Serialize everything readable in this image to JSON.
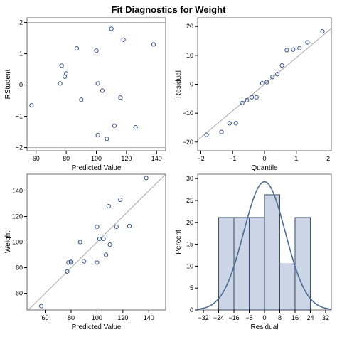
{
  "title": "Fit Diagnostics for Weight",
  "colors": {
    "marker": "#39558a",
    "curve": "#4d6b94",
    "bar_fill": "#cbd5e5",
    "bar_stroke": "#3a4a66",
    "frame": "#6f6f6f",
    "refline": "#a8a8a8"
  },
  "chart_data": [
    {
      "type": "scatter",
      "panel": "rstudent-vs-predicted",
      "xlabel": "Predicted Value",
      "ylabel": "RStudent",
      "xlim": [
        54,
        146
      ],
      "ylim": [
        -2.1,
        2.15
      ],
      "xticks": [
        60,
        80,
        100,
        120,
        140
      ],
      "yticks": [
        -2,
        -1,
        0,
        1,
        2
      ],
      "reference_lines_y": [
        -2,
        2
      ],
      "points": [
        {
          "x": 57,
          "y": -0.65
        },
        {
          "x": 76,
          "y": 0.05
        },
        {
          "x": 77,
          "y": 0.62
        },
        {
          "x": 79,
          "y": 0.27
        },
        {
          "x": 80,
          "y": 0.37
        },
        {
          "x": 87,
          "y": 1.17
        },
        {
          "x": 90,
          "y": -0.47
        },
        {
          "x": 100,
          "y": 1.1
        },
        {
          "x": 101,
          "y": -1.6
        },
        {
          "x": 101,
          "y": 0.05
        },
        {
          "x": 104,
          "y": -0.18
        },
        {
          "x": 107,
          "y": -1.72
        },
        {
          "x": 110,
          "y": 1.8
        },
        {
          "x": 112,
          "y": -1.3
        },
        {
          "x": 116,
          "y": -0.4
        },
        {
          "x": 118,
          "y": 1.45
        },
        {
          "x": 126,
          "y": -1.35
        },
        {
          "x": 138,
          "y": 1.3
        }
      ]
    },
    {
      "type": "scatter",
      "panel": "qq-plot",
      "xlabel": "Quantile",
      "ylabel": "Residual",
      "xlim": [
        -2.1,
        2.1
      ],
      "ylim": [
        -23,
        23
      ],
      "xticks": [
        -2,
        -1,
        0,
        1,
        2
      ],
      "yticks": [
        -20,
        -10,
        0,
        10,
        20
      ],
      "reference_line": {
        "slope": 9.2,
        "intercept": 0
      },
      "points": [
        {
          "x": -1.82,
          "y": -17.5
        },
        {
          "x": -1.35,
          "y": -16.5
        },
        {
          "x": -1.1,
          "y": -13.5
        },
        {
          "x": -0.9,
          "y": -13.5
        },
        {
          "x": -0.7,
          "y": -6.5
        },
        {
          "x": -0.55,
          "y": -5.5
        },
        {
          "x": -0.4,
          "y": -4.5
        },
        {
          "x": -0.25,
          "y": -4.5
        },
        {
          "x": -0.07,
          "y": 0.3
        },
        {
          "x": 0.07,
          "y": 0.7
        },
        {
          "x": 0.25,
          "y": 2.5
        },
        {
          "x": 0.4,
          "y": 3.5
        },
        {
          "x": 0.55,
          "y": 6.5
        },
        {
          "x": 0.7,
          "y": 11.8
        },
        {
          "x": 0.9,
          "y": 12.0
        },
        {
          "x": 1.1,
          "y": 12.5
        },
        {
          "x": 1.35,
          "y": 14.5
        },
        {
          "x": 1.82,
          "y": 18.3
        }
      ]
    },
    {
      "type": "scatter",
      "panel": "observed-vs-predicted",
      "xlabel": "Predicted Value",
      "ylabel": "Weight",
      "xlim": [
        46,
        153
      ],
      "ylim": [
        47,
        153
      ],
      "xticks": [
        60,
        80,
        100,
        120,
        140
      ],
      "yticks": [
        60,
        80,
        100,
        120,
        140
      ],
      "reference_line": {
        "slope": 1,
        "intercept": 0
      },
      "points": [
        {
          "x": 57,
          "y": 50
        },
        {
          "x": 77,
          "y": 77
        },
        {
          "x": 78,
          "y": 84
        },
        {
          "x": 80,
          "y": 84
        },
        {
          "x": 80,
          "y": 85
        },
        {
          "x": 87,
          "y": 100
        },
        {
          "x": 90,
          "y": 85
        },
        {
          "x": 100,
          "y": 84
        },
        {
          "x": 100,
          "y": 112
        },
        {
          "x": 102,
          "y": 102.5
        },
        {
          "x": 105,
          "y": 102.5
        },
        {
          "x": 107,
          "y": 90
        },
        {
          "x": 109,
          "y": 128
        },
        {
          "x": 110,
          "y": 98
        },
        {
          "x": 115,
          "y": 112
        },
        {
          "x": 118,
          "y": 133
        },
        {
          "x": 125,
          "y": 112.5
        },
        {
          "x": 138,
          "y": 150
        }
      ]
    },
    {
      "type": "bar",
      "panel": "residual-histogram",
      "xlabel": "Residual",
      "ylabel": "Percent",
      "xlim": [
        -35,
        35
      ],
      "ylim": [
        0,
        31
      ],
      "xticks": [
        -32,
        -24,
        -16,
        -8,
        0,
        8,
        16,
        24,
        32
      ],
      "yticks": [
        0,
        5,
        10,
        15,
        20,
        25,
        30
      ],
      "bin_width": 8,
      "bins": [
        {
          "center": -20,
          "value": 21.1
        },
        {
          "center": -12,
          "value": 21.1
        },
        {
          "center": -4,
          "value": 21.1
        },
        {
          "center": 4,
          "value": 26.3
        },
        {
          "center": 12,
          "value": 10.5
        },
        {
          "center": 20,
          "value": 21.1
        }
      ],
      "normal_curve": {
        "mean": 0,
        "sd": 10.9
      }
    }
  ]
}
